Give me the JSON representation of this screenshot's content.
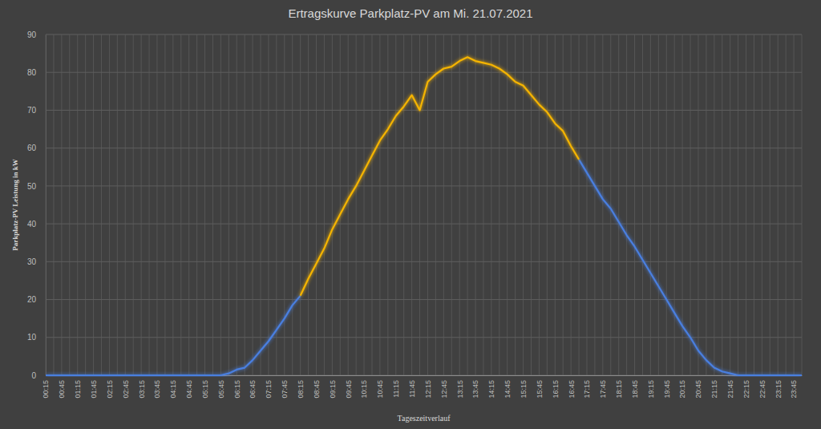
{
  "chart_data": {
    "type": "line",
    "title": "Ertragskurve Parkplatz-PV am Mi. 21.07.2021",
    "x_label": "Tageszeitverlauf",
    "y_label": "Parkplatz-PV Leistung in kW",
    "categories": [
      "00:15",
      null,
      "00:45",
      null,
      "01:15",
      null,
      "01:45",
      null,
      "02:15",
      null,
      "02:45",
      null,
      "03:15",
      null,
      "03:45",
      null,
      "04:15",
      null,
      "04:45",
      null,
      "05:15",
      null,
      "05:45",
      null,
      "06:15",
      null,
      "06:45",
      null,
      "07:15",
      null,
      "07:45",
      null,
      "08:15",
      null,
      "08:45",
      null,
      "09:15",
      null,
      "09:45",
      null,
      "10:15",
      null,
      "10:45",
      null,
      "11:15",
      null,
      "11:45",
      null,
      "12:15",
      null,
      "12:45",
      null,
      "13:15",
      null,
      "13:45",
      null,
      "14:15",
      null,
      "14:45",
      null,
      "15:15",
      null,
      "15:45",
      null,
      "16:15",
      null,
      "16:45",
      null,
      "17:15",
      null,
      "17:45",
      null,
      "18:15",
      null,
      "18:45",
      null,
      "19:15",
      null,
      "19:45",
      null,
      "20:15",
      null,
      "20:45",
      null,
      "21:15",
      null,
      "21:45",
      null,
      "22:15",
      null,
      "22:45",
      null,
      "23:15",
      null,
      "23:45",
      null
    ],
    "series": [
      {
        "color": "#4a7fe0",
        "values": [
          0,
          0,
          0,
          0,
          0,
          0,
          0,
          0,
          0,
          0,
          0,
          0,
          0,
          0,
          0,
          0,
          0,
          0,
          0,
          0,
          0,
          0,
          0,
          0.5,
          1.5,
          2,
          4,
          6.5,
          9,
          12,
          15,
          18.5,
          21,
          null,
          null,
          null,
          null,
          null,
          null,
          null,
          null,
          null,
          null,
          null,
          null,
          null,
          null,
          null,
          null,
          null,
          null,
          null,
          null,
          null,
          null,
          null,
          null,
          null,
          null,
          null,
          null,
          null,
          null,
          null,
          null,
          null,
          null,
          57,
          53.5,
          50,
          46.5,
          44,
          40.5,
          37,
          34,
          30.5,
          27,
          23.5,
          20,
          16.5,
          13,
          10,
          6.5,
          4,
          2,
          1,
          0.5,
          0,
          0,
          0,
          0,
          0,
          0,
          0,
          0,
          0
        ]
      },
      {
        "color": "#f5b400",
        "values": [
          null,
          null,
          null,
          null,
          null,
          null,
          null,
          null,
          null,
          null,
          null,
          null,
          null,
          null,
          null,
          null,
          null,
          null,
          null,
          null,
          null,
          null,
          null,
          null,
          null,
          null,
          null,
          null,
          null,
          null,
          null,
          null,
          21,
          25.5,
          29.5,
          33.5,
          38.5,
          42.5,
          46.5,
          50,
          54,
          58,
          62,
          65,
          68.5,
          71,
          74,
          70,
          77.5,
          79.5,
          81,
          81.5,
          83,
          84,
          83,
          82.5,
          82,
          81,
          79.5,
          77.5,
          76.5,
          74,
          71.5,
          69.5,
          66.5,
          64.5,
          60.5,
          57,
          null,
          null,
          null,
          null,
          null,
          null,
          null,
          null,
          null,
          null,
          null,
          null,
          null,
          null,
          null,
          null,
          null,
          null,
          null,
          null,
          null,
          null,
          null,
          null,
          null,
          null,
          null,
          null
        ]
      }
    ],
    "ylim": [
      0,
      90
    ],
    "yticks": [
      0,
      10,
      20,
      30,
      40,
      50,
      60,
      70,
      80,
      90
    ],
    "grid": true
  }
}
